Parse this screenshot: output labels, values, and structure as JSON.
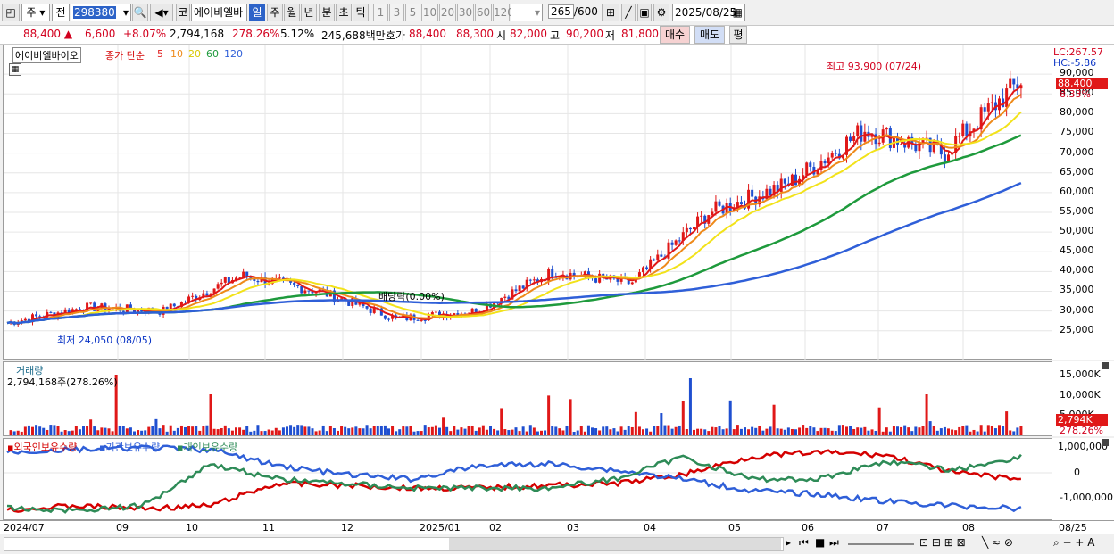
{
  "toolbar": {
    "type_jusik": "주",
    "type_jeon": "전",
    "code": "298380",
    "kor_btn": "코",
    "name": "에이비엘바",
    "periods": [
      "일",
      "주",
      "월",
      "년",
      "분",
      "초",
      "틱"
    ],
    "active_period": "일",
    "numbers": [
      "1",
      "3",
      "5",
      "10",
      "20",
      "30",
      "60",
      "120"
    ],
    "count": "265",
    "total": "/600",
    "date": "2025/08/25"
  },
  "quote": {
    "price": "88,400",
    "arrow": "▲",
    "change": "6,600",
    "rate": "+8.07%",
    "volume": "2,794,168",
    "vol_ratio": "278.26%",
    "turnover": "5.12%",
    "amount": "245,688백만",
    "hoga_label": "호가",
    "hoga1": "88,400",
    "hoga2": "88,300",
    "open_label": "시",
    "open": "82,000",
    "high_label": "고",
    "high": "90,200",
    "low_label": "저",
    "low": "81,800",
    "buy": "매수",
    "sell": "매도",
    "eval": "평"
  },
  "price_panel": {
    "stock_name": "에이비엘바이오",
    "ma_label": "종가 단순",
    "ma_periods": [
      "5",
      "10",
      "20",
      "60",
      "120"
    ],
    "ma_colors": [
      "#e01818",
      "#ee8a1a",
      "#f2e21a",
      "#1e9a3c",
      "#2f5fd8"
    ],
    "lc": "LC:267.57",
    "hc": "HC:-5.86",
    "high_annot": "최고 93,900 (07/24)",
    "low_annot": "최저 24,050 (08/05)",
    "dividend": "배당락(0.00%)",
    "current": "88,400",
    "current_pct": "8.33%",
    "y_ticks": [
      "90,000",
      "85,000",
      "80,000",
      "75,000",
      "70,000",
      "65,000",
      "60,000",
      "55,000",
      "50,000",
      "45,000",
      "40,000",
      "35,000",
      "30,000",
      "25,000"
    ]
  },
  "volume_panel": {
    "title": "거래량",
    "info": "2,794,168주(278.26%)",
    "y_ticks": [
      "15,000K",
      "10,000K",
      "5,000K"
    ],
    "current": "2,794K",
    "current_pct": "278.26%"
  },
  "holding_panel": {
    "labels": [
      "외국인보유수량",
      "기관보유수량",
      "개인보유수량"
    ],
    "colors": [
      "#d40000",
      "#2f5fd8",
      "#2e8b57"
    ],
    "y_ticks": [
      "1,000,000",
      "0",
      "-1,000,000"
    ]
  },
  "x_axis": [
    "2024/07",
    "09",
    "10",
    "11",
    "12",
    "2025/01",
    "02",
    "03",
    "04",
    "05",
    "06",
    "07",
    "08",
    "08/25"
  ],
  "chart_data": {
    "type": "line",
    "title": "에이비엘바이오",
    "series_close_approx": [
      {
        "month": "2024/07",
        "value": 27000
      },
      {
        "month": "2024/08",
        "value": 31000
      },
      {
        "month": "2024/09",
        "value": 30000
      },
      {
        "month": "2024/10",
        "value": 39000
      },
      {
        "month": "2024/11",
        "value": 35000
      },
      {
        "month": "2024/12",
        "value": 28000
      },
      {
        "month": "2025/01",
        "value": 30000
      },
      {
        "month": "2025/02",
        "value": 40000
      },
      {
        "month": "2025/03",
        "value": 37000
      },
      {
        "month": "2025/04",
        "value": 55000
      },
      {
        "month": "2025/05",
        "value": 62000
      },
      {
        "month": "2025/06",
        "value": 76000
      },
      {
        "month": "2025/07",
        "value": 70000
      },
      {
        "month": "2025/08",
        "value": 88400
      }
    ],
    "ylim": [
      22000,
      95000
    ]
  }
}
